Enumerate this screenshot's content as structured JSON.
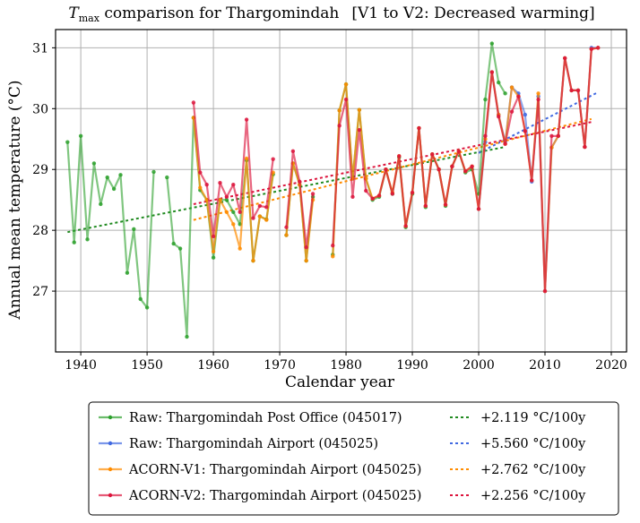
{
  "chart_data": {
    "type": "line",
    "title": {
      "prefix_italic": "T",
      "prefix_sub": "max",
      "main": " comparison for Thargomindah",
      "bracket": "[V1 to V2: Decreased warming]"
    },
    "xlabel": "Calendar year",
    "ylabel": "Annual mean temperature (°C)",
    "xlim": [
      1936.2,
      2022.3
    ],
    "ylim": [
      26.0,
      31.3
    ],
    "xticks": [
      1940,
      1950,
      1960,
      1970,
      1980,
      1990,
      2000,
      2010,
      2020
    ],
    "yticks": [
      27,
      28,
      29,
      30,
      31
    ],
    "grid": true,
    "legend_placement": "below",
    "series": [
      {
        "name": "Raw: Thargomindah Post Office (045017)",
        "color": "#2ca02c",
        "points": [
          [
            1938,
            29.45
          ],
          [
            1939,
            27.8
          ],
          [
            1940,
            29.55
          ],
          [
            1941,
            27.85
          ],
          [
            1942,
            29.1
          ],
          [
            1943,
            28.43
          ],
          [
            1944,
            28.87
          ],
          [
            1945,
            28.68
          ],
          [
            1946,
            28.91
          ],
          [
            1947,
            27.3
          ],
          [
            1948,
            28.02
          ],
          [
            1949,
            26.87
          ],
          [
            1950,
            26.73
          ],
          [
            1951,
            28.96
          ],
          [
            null,
            null
          ],
          [
            1953,
            28.87
          ],
          [
            1954,
            27.78
          ],
          [
            1955,
            27.7
          ],
          [
            1956,
            26.25
          ],
          [
            1957,
            29.85
          ],
          [
            1958,
            28.66
          ],
          [
            1959,
            28.5
          ],
          [
            1960,
            27.55
          ],
          [
            1961,
            28.5
          ],
          [
            1962,
            28.5
          ],
          [
            1963,
            28.3
          ],
          [
            1964,
            28.1
          ],
          [
            1965,
            29.15
          ],
          [
            1966,
            27.5
          ],
          [
            1967,
            28.23
          ],
          [
            1968,
            28.18
          ],
          [
            1969,
            28.92
          ],
          [
            null,
            null
          ],
          [
            1971,
            27.92
          ],
          [
            1972,
            29.1
          ],
          [
            1973,
            28.75
          ],
          [
            1974,
            27.5
          ],
          [
            1975,
            28.55
          ],
          [
            null,
            null
          ],
          [
            1978,
            27.6
          ],
          [
            1979,
            29.97
          ],
          [
            1980,
            30.4
          ],
          [
            1981,
            28.85
          ],
          [
            1982,
            29.98
          ],
          [
            1983,
            28.85
          ],
          [
            1984,
            28.5
          ],
          [
            1985,
            28.55
          ],
          [
            1986,
            29.0
          ],
          [
            1987,
            28.6
          ],
          [
            1988,
            29.2
          ],
          [
            1989,
            28.05
          ],
          [
            1990,
            28.6
          ],
          [
            1991,
            29.68
          ],
          [
            1992,
            28.38
          ],
          [
            1993,
            29.25
          ],
          [
            1994,
            29.0
          ],
          [
            1995,
            28.4
          ],
          [
            1996,
            29.05
          ],
          [
            1997,
            29.3
          ],
          [
            1998,
            28.95
          ],
          [
            1999,
            29.0
          ],
          [
            2000,
            28.6
          ],
          [
            2001,
            30.15
          ],
          [
            2002,
            31.07
          ],
          [
            2003,
            30.43
          ],
          [
            2004,
            30.25
          ]
        ]
      },
      {
        "name": "Raw: Thargomindah Airport (045025)",
        "color": "#4169e1",
        "points": [
          [
            2000,
            28.35
          ],
          [
            2001,
            29.45
          ],
          [
            2002,
            30.6
          ],
          [
            2003,
            29.9
          ],
          [
            2004,
            29.45
          ],
          [
            2005,
            30.35
          ],
          [
            2006,
            30.25
          ],
          [
            2007,
            29.9
          ],
          [
            2008,
            28.8
          ],
          [
            2009,
            30.2
          ],
          [
            2010,
            27.0
          ],
          [
            2011,
            29.36
          ],
          [
            2012,
            29.55
          ],
          [
            2013,
            30.83
          ],
          [
            2014,
            30.3
          ],
          [
            2015,
            30.3
          ],
          [
            2016,
            29.37
          ],
          [
            2017,
            31.0
          ],
          [
            2018,
            31.0
          ]
        ]
      },
      {
        "name": "ACORN-V1: Thargomindah Airport (045025)",
        "color": "#ff8c00",
        "points": [
          [
            1957,
            29.85
          ],
          [
            1958,
            28.7
          ],
          [
            1959,
            28.5
          ],
          [
            1960,
            27.65
          ],
          [
            1961,
            28.5
          ],
          [
            1962,
            28.3
          ],
          [
            1963,
            28.1
          ],
          [
            1964,
            27.7
          ],
          [
            1965,
            29.18
          ],
          [
            1966,
            27.5
          ],
          [
            1967,
            28.23
          ],
          [
            1968,
            28.17
          ],
          [
            1969,
            28.95
          ],
          [
            null,
            null
          ],
          [
            1971,
            27.92
          ],
          [
            1972,
            29.1
          ],
          [
            1973,
            28.75
          ],
          [
            1974,
            27.5
          ],
          [
            1975,
            28.5
          ],
          [
            null,
            null
          ],
          [
            1978,
            27.57
          ],
          [
            1979,
            29.97
          ],
          [
            1980,
            30.4
          ],
          [
            1981,
            28.85
          ],
          [
            1982,
            29.98
          ],
          [
            1983,
            28.85
          ],
          [
            1984,
            28.52
          ],
          [
            1985,
            28.57
          ],
          [
            1986,
            29.0
          ],
          [
            1987,
            28.62
          ],
          [
            1988,
            29.22
          ],
          [
            1989,
            28.07
          ],
          [
            1990,
            28.62
          ],
          [
            1991,
            29.68
          ],
          [
            1992,
            28.4
          ],
          [
            1993,
            29.25
          ],
          [
            1994,
            29.0
          ],
          [
            1995,
            28.42
          ],
          [
            1996,
            29.05
          ],
          [
            1997,
            29.3
          ],
          [
            1998,
            28.97
          ],
          [
            1999,
            29.05
          ],
          [
            2000,
            28.35
          ],
          [
            2001,
            29.5
          ],
          [
            2002,
            30.6
          ],
          [
            2003,
            29.9
          ],
          [
            2004,
            29.42
          ],
          [
            2005,
            30.35
          ],
          [
            2006,
            30.2
          ],
          [
            2007,
            29.63
          ],
          [
            2008,
            28.82
          ],
          [
            2009,
            30.25
          ],
          [
            2010,
            27.0
          ],
          [
            2011,
            29.36
          ],
          [
            2012,
            29.55
          ],
          [
            2013,
            30.83
          ],
          [
            2014,
            30.3
          ],
          [
            2015,
            30.3
          ],
          [
            2016,
            29.37
          ],
          [
            2017,
            30.98
          ],
          [
            2018,
            31.0
          ]
        ]
      },
      {
        "name": "ACORN-V2: Thargomindah Airport (045025)",
        "color": "#dc143c",
        "points": [
          [
            1957,
            30.1
          ],
          [
            1958,
            28.95
          ],
          [
            1959,
            28.75
          ],
          [
            1960,
            27.9
          ],
          [
            1961,
            28.78
          ],
          [
            1962,
            28.55
          ],
          [
            1963,
            28.75
          ],
          [
            1964,
            28.3
          ],
          [
            1965,
            29.82
          ],
          [
            1966,
            28.2
          ],
          [
            1967,
            28.4
          ],
          [
            1968,
            28.38
          ],
          [
            1969,
            29.17
          ],
          [
            null,
            null
          ],
          [
            1971,
            28.05
          ],
          [
            1972,
            29.3
          ],
          [
            1973,
            28.8
          ],
          [
            1974,
            27.72
          ],
          [
            1975,
            28.6
          ],
          [
            null,
            null
          ],
          [
            1978,
            27.75
          ],
          [
            1979,
            29.72
          ],
          [
            1980,
            30.15
          ],
          [
            1981,
            28.55
          ],
          [
            1982,
            29.65
          ],
          [
            1983,
            28.65
          ],
          [
            1984,
            28.52
          ],
          [
            1985,
            28.57
          ],
          [
            1986,
            29.0
          ],
          [
            1987,
            28.6
          ],
          [
            1988,
            29.22
          ],
          [
            1989,
            28.07
          ],
          [
            1990,
            28.62
          ],
          [
            1991,
            29.68
          ],
          [
            1992,
            28.4
          ],
          [
            1993,
            29.25
          ],
          [
            1994,
            29.0
          ],
          [
            1995,
            28.42
          ],
          [
            1996,
            29.05
          ],
          [
            1997,
            29.3
          ],
          [
            1998,
            28.97
          ],
          [
            1999,
            29.05
          ],
          [
            2000,
            28.35
          ],
          [
            2001,
            29.55
          ],
          [
            2002,
            30.6
          ],
          [
            2003,
            29.87
          ],
          [
            2004,
            29.42
          ],
          [
            2005,
            29.95
          ],
          [
            2006,
            30.2
          ],
          [
            2007,
            29.63
          ],
          [
            2008,
            28.82
          ],
          [
            2009,
            30.15
          ],
          [
            2010,
            27.0
          ],
          [
            2011,
            29.55
          ],
          [
            2012,
            29.55
          ],
          [
            2013,
            30.83
          ],
          [
            2014,
            30.3
          ],
          [
            2015,
            30.3
          ],
          [
            2016,
            29.37
          ],
          [
            2017,
            30.98
          ],
          [
            2018,
            31.0
          ]
        ]
      }
    ],
    "trends": [
      {
        "label": "+2.119 °C/100y",
        "color": "#228b22",
        "x": [
          1938,
          2004
        ],
        "y": [
          27.97,
          29.37
        ]
      },
      {
        "label": "+5.560 °C/100y",
        "color": "#4169e1",
        "x": [
          2000,
          2018
        ],
        "y": [
          29.27,
          30.27
        ]
      },
      {
        "label": "+2.762 °C/100y",
        "color": "#ff8c00",
        "x": [
          1957,
          2017
        ],
        "y": [
          28.17,
          29.83
        ]
      },
      {
        "label": "+2.256 °C/100y",
        "color": "#dc143c",
        "x": [
          1957,
          2017
        ],
        "y": [
          28.43,
          29.78
        ]
      }
    ],
    "legend": {
      "entries": [
        "Raw: Thargomindah Post Office (045017)",
        "Raw: Thargomindah Airport (045025)",
        "ACORN-V1: Thargomindah Airport (045025)",
        "ACORN-V2: Thargomindah Airport (045025)"
      ],
      "trend_entries": [
        "+2.119 °C/100y",
        "+5.560 °C/100y",
        "+2.762 °C/100y",
        "+2.256 °C/100y"
      ]
    }
  }
}
